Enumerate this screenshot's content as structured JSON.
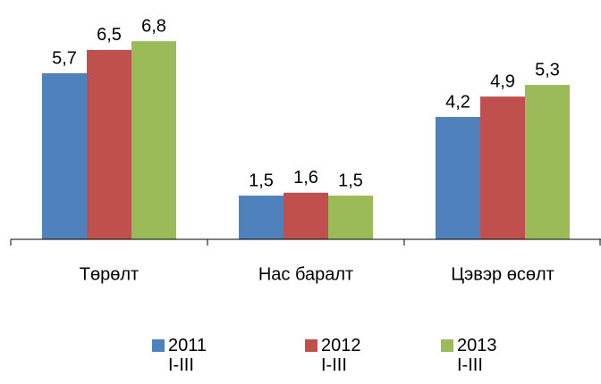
{
  "chart_data": {
    "type": "bar",
    "categories": [
      "Төрөлт",
      "Нас баралт",
      "Цэвэр өсөлт"
    ],
    "series": [
      {
        "name": "2011\nI-III",
        "color": "#4f81bd",
        "values": [
          5.7,
          1.5,
          4.2
        ],
        "value_labels": [
          "5,7",
          "1,5",
          "4,2"
        ]
      },
      {
        "name": "2012\nI-III",
        "color": "#c0504d",
        "values": [
          6.5,
          1.6,
          4.9
        ],
        "value_labels": [
          "6,5",
          "1,6",
          "4,9"
        ]
      },
      {
        "name": "2013\nI-III",
        "color": "#9bbb59",
        "values": [
          6.8,
          1.5,
          5.3
        ],
        "value_labels": [
          "6,8",
          "1,5",
          "5,3"
        ]
      }
    ],
    "ylim": [
      0,
      8
    ],
    "legend": "bottom"
  }
}
